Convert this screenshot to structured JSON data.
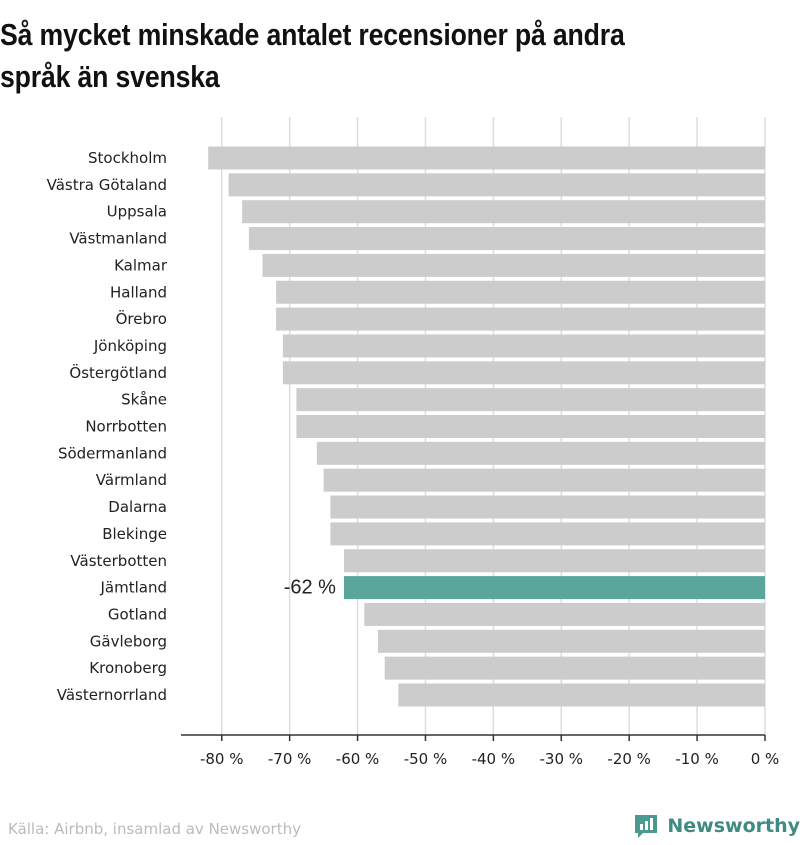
{
  "title": "Så mycket minskade antalet recensioner på andra språk än svenska",
  "footer": {
    "source": "Källa: Airbnb, insamlad av Newsworthy",
    "brand": "Newsworthy",
    "brand_color": "#4a9a8f"
  },
  "chart_data": {
    "type": "bar",
    "orientation": "horizontal",
    "categories": [
      "Stockholm",
      "Västra Götaland",
      "Uppsala",
      "Västmanland",
      "Kalmar",
      "Halland",
      "Örebro",
      "Jönköping",
      "Östergötland",
      "Skåne",
      "Norrbotten",
      "Södermanland",
      "Värmland",
      "Dalarna",
      "Blekinge",
      "Västerbotten",
      "Jämtland",
      "Gotland",
      "Gävleborg",
      "Kronoberg",
      "Västernorrland"
    ],
    "values": [
      -82,
      -79,
      -77,
      -76,
      -74,
      -72,
      -72,
      -71,
      -71,
      -69,
      -69,
      -66,
      -65,
      -64,
      -64,
      -62,
      -62,
      -59,
      -57,
      -56,
      -54
    ],
    "highlight": {
      "category": "Jämtland",
      "label": "-62 %"
    },
    "xlim": [
      -86,
      0
    ],
    "xticks": [
      -80,
      -70,
      -60,
      -50,
      -40,
      -30,
      -20,
      -10,
      0
    ],
    "tick_labels": [
      "-80 %",
      "-70 %",
      "-60 %",
      "-50 %",
      "-40 %",
      "-30 %",
      "-20 %",
      "-10 %",
      "0 %"
    ],
    "grid": true,
    "colors": {
      "bar": "#cccccc",
      "highlight": "#5aa69c",
      "grid": "#dddddd"
    }
  }
}
